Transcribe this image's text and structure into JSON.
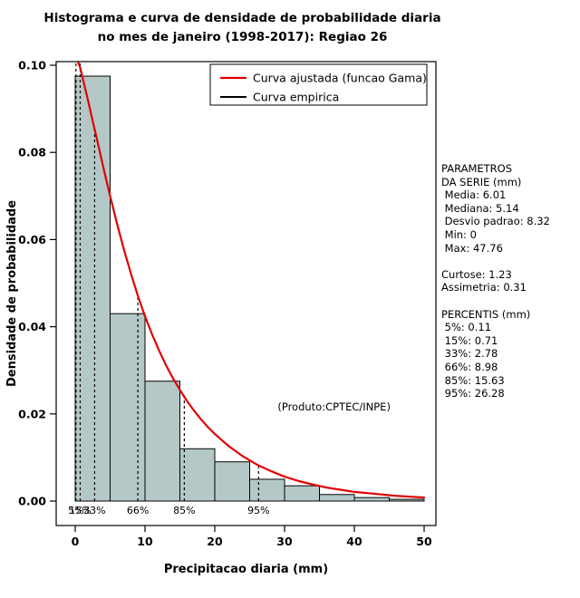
{
  "title": {
    "line1": "Histograma e curva de densidade de probabilidade diaria",
    "line2": "no mes de janeiro (1998-2017): Regiao 26"
  },
  "stats_panel": {
    "lines": [
      "PARAMETROS",
      "DA SERIE (mm)",
      " Media: 6.01",
      " Mediana: 5.14",
      " Desvio padrao: 8.32",
      " Min: 0",
      " Max: 47.76",
      "",
      "Curtose: 1.23",
      "Assimetria: 0.31",
      "",
      "PERCENTIS (mm)",
      " 5%: 0.11",
      " 15%: 0.71",
      " 33%: 2.78",
      " 66%: 8.98",
      " 85%: 15.63",
      " 95%: 26.28"
    ]
  },
  "colors": {
    "bar_fill": "#b5c8c8",
    "bar_border": "#000000",
    "gamma_curve": "#e00000",
    "empirical": "#000000",
    "axis": "#000000"
  },
  "chart_data": {
    "type": "bar",
    "title": "Histograma e curva de densidade de probabilidade diaria no mes de janeiro (1998-2017): Regiao 26",
    "xlabel": "Precipitacao diaria (mm)",
    "ylabel": "Densidade de probabilidade",
    "xlim": [
      0,
      50
    ],
    "ylim": [
      0,
      0.1
    ],
    "x_ticks": [
      "0",
      "10",
      "20",
      "30",
      "40",
      "50"
    ],
    "y_ticks": [
      "0.00",
      "0.02",
      "0.04",
      "0.06",
      "0.08",
      "0.10"
    ],
    "bins": {
      "start": [
        0,
        5,
        10,
        15,
        20,
        25,
        30,
        35,
        40,
        45
      ],
      "width": 5,
      "density": [
        0.0975,
        0.043,
        0.0275,
        0.012,
        0.009,
        0.005,
        0.0035,
        0.0015,
        0.0008,
        0.0004
      ]
    },
    "gamma_curve": {
      "x": [
        0.35,
        0.7,
        1,
        1.5,
        2,
        2.5,
        3,
        3.5,
        4,
        4.5,
        5,
        6,
        7,
        8,
        9,
        10,
        11,
        12,
        13,
        14,
        15,
        16,
        17,
        18,
        19,
        20,
        22,
        24,
        26,
        28,
        30,
        32,
        34,
        36,
        38,
        40,
        42,
        44,
        46,
        48,
        50
      ],
      "y": [
        0.101,
        0.0995,
        0.0975,
        0.0942,
        0.0908,
        0.0872,
        0.0838,
        0.0803,
        0.0768,
        0.0733,
        0.07,
        0.0636,
        0.0576,
        0.0521,
        0.047,
        0.0424,
        0.0383,
        0.0346,
        0.0312,
        0.0282,
        0.0255,
        0.023,
        0.0208,
        0.0188,
        0.017,
        0.0154,
        0.0126,
        0.0103,
        0.0084,
        0.0069,
        0.0056,
        0.0046,
        0.0038,
        0.0031,
        0.0026,
        0.0021,
        0.0018,
        0.0015,
        0.0012,
        0.001,
        0.0008
      ]
    },
    "percentiles": [
      {
        "label": "5%",
        "x": 0.11,
        "line_top": 0.1008
      },
      {
        "label": "15%",
        "x": 0.71,
        "line_top": 0.1008
      },
      {
        "label": "33%",
        "x": 2.78,
        "line_top": 0.0855
      },
      {
        "label": "66%",
        "x": 8.98,
        "line_top": 0.047
      },
      {
        "label": "85%",
        "x": 15.63,
        "line_top": 0.0243
      },
      {
        "label": "95%",
        "x": 26.28,
        "line_top": 0.0082
      }
    ],
    "legend": [
      {
        "label": "Curva ajustada (funcao Gama)",
        "color": "#e00000",
        "stroke_width": 2.2
      },
      {
        "label": "Curva empirica",
        "color": "#000000",
        "stroke_width": 2
      }
    ],
    "annotation": {
      "text": "(Produto:CPTEC/INPE)",
      "x": 37.1,
      "y": 0.0216
    }
  }
}
